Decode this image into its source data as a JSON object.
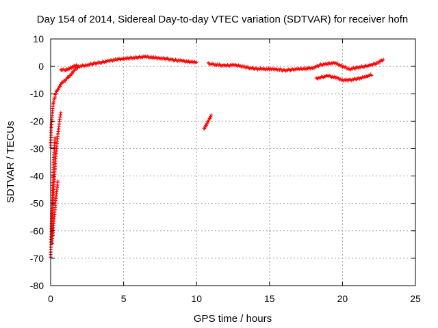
{
  "chart_data": {
    "type": "scatter",
    "title": "Day 154 of 2014, Sidereal Day-to-day VTEC variation (SDTVAR) for receiver hofn",
    "xlabel": "GPS time / hours",
    "ylabel": "SDTVAR / TECUs",
    "xlim": [
      0,
      25
    ],
    "ylim": [
      -80,
      10
    ],
    "xticks": [
      0,
      5,
      10,
      15,
      20,
      25
    ],
    "yticks": [
      -80,
      -70,
      -60,
      -50,
      -40,
      -30,
      -20,
      -10,
      0,
      10
    ],
    "grid": true,
    "marker": "+",
    "series": [
      {
        "name": "SDTVAR",
        "color": "#ff0000",
        "segments": [
          {
            "x": [
              0.0,
              0.05,
              0.1,
              0.15,
              0.2,
              0.25,
              0.3,
              0.35,
              0.4,
              0.5,
              0.6,
              0.7,
              0.8,
              1.0,
              1.2,
              1.4,
              1.6,
              1.8,
              2.0,
              2.5,
              3.0,
              3.5,
              4.0,
              4.5,
              5.0,
              5.5,
              6.0,
              6.5,
              7.0,
              7.5,
              8.0,
              8.5,
              9.0,
              9.5,
              10.0
            ],
            "y": [
              -30,
              -22,
              -18,
              -15,
              -13,
              -12,
              -11,
              -10,
              -9,
              -8.5,
              -7.5,
              -6.5,
              -6,
              -5,
              -4,
              -3,
              -1.5,
              -0.5,
              0,
              0.5,
              1,
              1.5,
              2,
              2.5,
              2.8,
              3,
              3.3,
              3.5,
              3.2,
              3,
              2.7,
              2.3,
              2,
              1.7,
              1.5
            ]
          },
          {
            "x": [
              0.0,
              0.05,
              0.1,
              0.15,
              0.2,
              0.25,
              0.3
            ],
            "y": [
              -70,
              -60,
              -50,
              -42,
              -35,
              -30,
              -26
            ]
          },
          {
            "x": [
              0.1,
              0.15,
              0.2,
              0.3,
              0.4,
              0.5,
              0.6,
              0.7
            ],
            "y": [
              -65,
              -55,
              -45,
              -37,
              -30,
              -25,
              -20,
              -17
            ]
          },
          {
            "x": [
              0.15,
              0.2,
              0.25,
              0.3,
              0.35,
              0.4,
              0.45,
              0.5
            ],
            "y": [
              -62,
              -58,
              -55,
              -52,
              -49,
              -46,
              -44,
              -42
            ]
          },
          {
            "x": [
              0.7,
              0.8,
              1.0,
              1.2,
              1.4,
              1.6,
              1.8
            ],
            "y": [
              -1.5,
              -1.2,
              -1.5,
              -1.0,
              -0.5,
              0,
              0.5
            ]
          },
          {
            "x": [
              10.5,
              10.6,
              10.7,
              10.8,
              10.9,
              11.0
            ],
            "y": [
              -23,
              -22,
              -21,
              -20,
              -19,
              -18
            ]
          },
          {
            "x": [
              10.8,
              11.5,
              12.0,
              12.5,
              13.0,
              13.5,
              14.0,
              14.5,
              15.0,
              15.5,
              16.0,
              16.5,
              17.0,
              17.5,
              18.0,
              18.5,
              19.0,
              19.5,
              20.0,
              20.5,
              21.0,
              21.5,
              22.0,
              22.5,
              22.8
            ],
            "y": [
              1,
              0.5,
              0.2,
              0.5,
              0.2,
              -0.5,
              -0.8,
              -1.0,
              -1.0,
              -1.0,
              -1.5,
              -1.2,
              -1.0,
              -0.8,
              -0.5,
              0.5,
              1.0,
              1.2,
              0,
              -1.0,
              -0.5,
              0,
              0.5,
              1.5,
              2.5
            ]
          },
          {
            "x": [
              18.2,
              18.5,
              19.0,
              19.5,
              20.0,
              20.5,
              21.0,
              21.5,
              22.0
            ],
            "y": [
              -4.5,
              -4.0,
              -3.5,
              -4.0,
              -5.0,
              -5.0,
              -4.5,
              -4.0,
              -3.0
            ]
          }
        ]
      }
    ]
  }
}
